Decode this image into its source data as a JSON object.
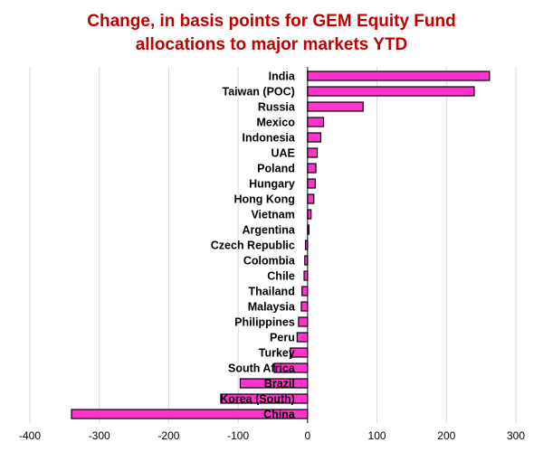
{
  "chart_data": {
    "type": "bar",
    "orientation": "horizontal",
    "title": "Change, in basis points for GEM Equity Fund allocations to major markets YTD",
    "title_lines": [
      "Change, in basis points for GEM Equity Fund",
      "allocations to major markets YTD"
    ],
    "xlabel": "",
    "ylabel": "",
    "xlim": [
      -400,
      300
    ],
    "x_ticks": [
      -400,
      -300,
      -200,
      -100,
      0,
      100,
      200,
      300
    ],
    "x_tick_labels": [
      "-400",
      "-300",
      "-200",
      "-100",
      "0",
      "100",
      "200",
      "300"
    ],
    "grid": true,
    "legend": "none",
    "bar_color": "#ff33cc",
    "bar_edge_color": "#000000",
    "title_color": "#c00000",
    "categories": [
      "India",
      "Taiwan (POC)",
      "Russia",
      "Mexico",
      "Indonesia",
      "UAE",
      "Poland",
      "Hungary",
      "Hong Kong",
      "Vietnam",
      "Argentina",
      "Czech Republic",
      "Colombia",
      "Chile",
      "Thailand",
      "Malaysia",
      "Philippines",
      "Peru",
      "Turkey",
      "South Africa",
      "Brazil",
      "Korea (South)",
      "China"
    ],
    "values": [
      262,
      240,
      80,
      23,
      19,
      14,
      12,
      11,
      9,
      5,
      2,
      -3,
      -4,
      -5,
      -8,
      -9,
      -13,
      -15,
      -25,
      -48,
      -97,
      -125,
      -340
    ]
  }
}
